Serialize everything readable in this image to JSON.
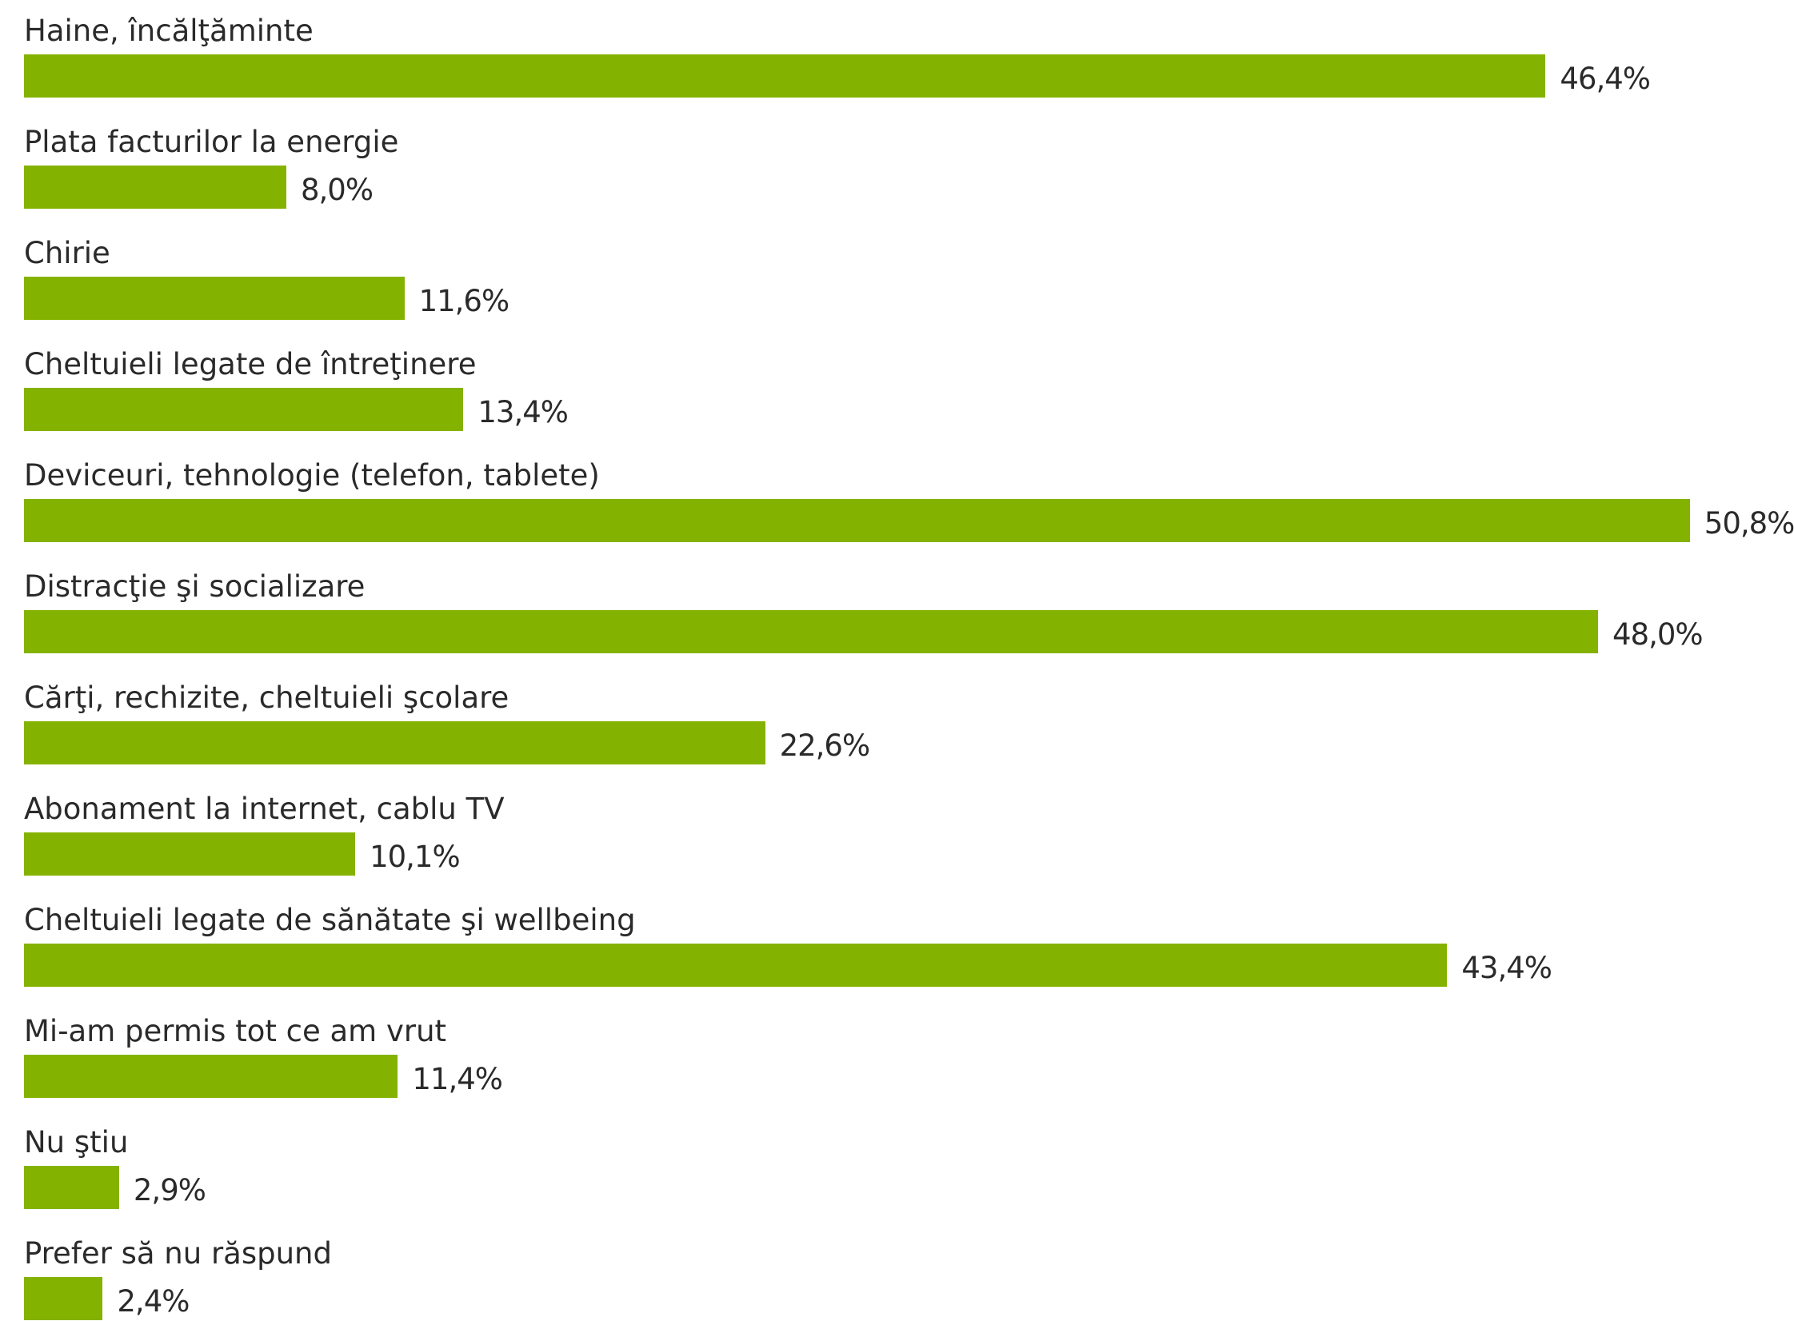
{
  "chart_data": {
    "type": "bar",
    "orientation": "horizontal",
    "categories": [
      "Haine, încălţăminte",
      "Plata facturilor la energie",
      "Chirie",
      "Cheltuieli legate de întreţinere",
      "Deviceuri, tehnologie (telefon, tablete)",
      "Distracţie şi socializare",
      "Cărţi, rechizite, cheltuieli şcolare",
      "Abonament la internet, cablu TV",
      "Cheltuieli legate de sănătate şi wellbeing",
      "Mi-am permis tot ce am vrut",
      "Nu ştiu",
      "Prefer să nu răspund"
    ],
    "values": [
      46.4,
      8.0,
      11.6,
      13.4,
      50.8,
      48.0,
      22.6,
      10.1,
      43.4,
      11.4,
      2.9,
      2.4
    ],
    "value_labels": [
      "46,4%",
      "8,0%",
      "11,6%",
      "13,4%",
      "50,8%",
      "48,0%",
      "22,6%",
      "10,1%",
      "43,4%",
      "11,4%",
      "2,9%",
      "2,4%"
    ],
    "unit": "%",
    "bar_color": "#84b200",
    "grid": false,
    "legend": "none"
  }
}
